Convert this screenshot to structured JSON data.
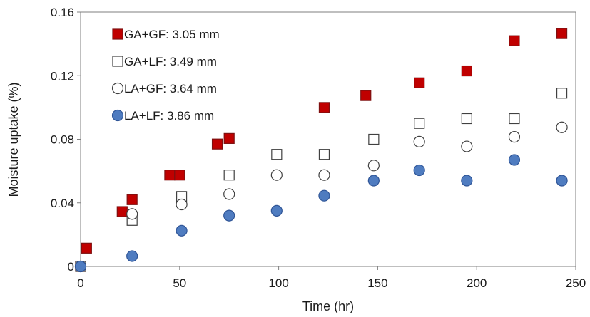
{
  "chart_data": {
    "type": "scatter",
    "title": "",
    "xlabel": "Time (hr)",
    "ylabel": "Moisture uptake (%)",
    "xlim": [
      0,
      250
    ],
    "ylim": [
      0,
      0.16
    ],
    "xticks": [
      0,
      50,
      100,
      150,
      200,
      250
    ],
    "yticks": [
      0,
      0.04,
      0.08,
      0.12,
      0.16
    ],
    "xtick_labels": [
      "0",
      "50",
      "100",
      "150",
      "200",
      "250"
    ],
    "ytick_labels": [
      "0",
      "0.04",
      "0.08",
      "0.12",
      "0.16"
    ],
    "grid": false,
    "legend_position": "top-left",
    "series": [
      {
        "name": "GA+GF: 3.05 mm",
        "marker": "square",
        "fill": "#c00000",
        "stroke": "#7f1010",
        "points": [
          [
            0,
            0
          ],
          [
            3,
            0.0115
          ],
          [
            21,
            0.0345
          ],
          [
            26,
            0.042
          ],
          [
            45,
            0.0575
          ],
          [
            50,
            0.0575
          ],
          [
            69,
            0.077
          ],
          [
            75,
            0.0805
          ],
          [
            123,
            0.1
          ],
          [
            144,
            0.1075
          ],
          [
            171,
            0.1155
          ],
          [
            195,
            0.123
          ],
          [
            219,
            0.142
          ],
          [
            243,
            0.1465
          ]
        ]
      },
      {
        "name": "GA+LF: 3.49 mm",
        "marker": "square",
        "fill": "#ffffff",
        "stroke": "#404040",
        "points": [
          [
            0,
            0
          ],
          [
            26,
            0.029
          ],
          [
            51,
            0.044
          ],
          [
            75,
            0.0575
          ],
          [
            99,
            0.0705
          ],
          [
            123,
            0.0705
          ],
          [
            148,
            0.08
          ],
          [
            171,
            0.09
          ],
          [
            195,
            0.093
          ],
          [
            219,
            0.093
          ],
          [
            243,
            0.109
          ]
        ]
      },
      {
        "name": "LA+GF: 3.64 mm",
        "marker": "circle",
        "fill": "#ffffff",
        "stroke": "#404040",
        "points": [
          [
            0,
            0
          ],
          [
            26,
            0.033
          ],
          [
            51,
            0.039
          ],
          [
            75,
            0.0455
          ],
          [
            99,
            0.0575
          ],
          [
            123,
            0.0575
          ],
          [
            148,
            0.0635
          ],
          [
            171,
            0.0785
          ],
          [
            195,
            0.0755
          ],
          [
            219,
            0.0815
          ],
          [
            243,
            0.0875
          ]
        ]
      },
      {
        "name": "LA+LF: 3.86 mm",
        "marker": "circle",
        "fill": "#4f7cc0",
        "stroke": "#2f5597",
        "points": [
          [
            0,
            0
          ],
          [
            26,
            0.0065
          ],
          [
            51,
            0.0225
          ],
          [
            75,
            0.032
          ],
          [
            99,
            0.035
          ],
          [
            123,
            0.0445
          ],
          [
            148,
            0.054
          ],
          [
            171,
            0.0605
          ],
          [
            195,
            0.054
          ],
          [
            219,
            0.067
          ],
          [
            243,
            0.054
          ]
        ]
      }
    ]
  }
}
